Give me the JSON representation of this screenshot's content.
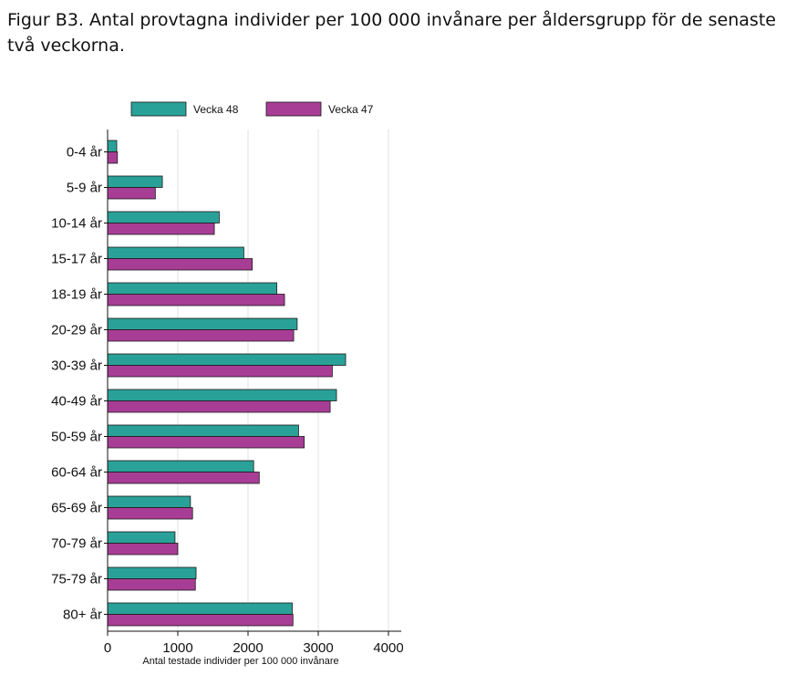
{
  "figure": {
    "title": "Figur B3. Antal provtagna individer per 100 000 invånare per åldersgrupp för de senaste två veckorna."
  },
  "chart_data": {
    "type": "bar",
    "orientation": "horizontal",
    "title": "Figur B3. Antal provtagna individer per 100 000 invånare per åldersgrupp för de senaste två veckorna.",
    "xlabel": "Antal testade individer per 100 000 invånare",
    "ylabel": "",
    "xlim": [
      0,
      4000
    ],
    "xticks": [
      0,
      1000,
      2000,
      3000,
      4000
    ],
    "grid": true,
    "legend_position": "top",
    "categories": [
      "0-4 år",
      "5-9 år",
      "10-14 år",
      "15-17 år",
      "18-19 år",
      "20-29 år",
      "30-39 år",
      "40-49 år",
      "50-59 år",
      "60-64 år",
      "65-69 år",
      "70-79 år",
      "75-79 år",
      "80+ år"
    ],
    "series": [
      {
        "name": "Vecka 48",
        "color": "#2aa198",
        "values": [
          130,
          780,
          1590,
          1940,
          2410,
          2700,
          3390,
          3260,
          2720,
          2080,
          1180,
          960,
          1260,
          2630
        ]
      },
      {
        "name": "Vecka 47",
        "color": "#a83d96",
        "values": [
          140,
          680,
          1520,
          2060,
          2520,
          2650,
          3200,
          3170,
          2800,
          2160,
          1210,
          1000,
          1250,
          2640
        ]
      }
    ]
  }
}
